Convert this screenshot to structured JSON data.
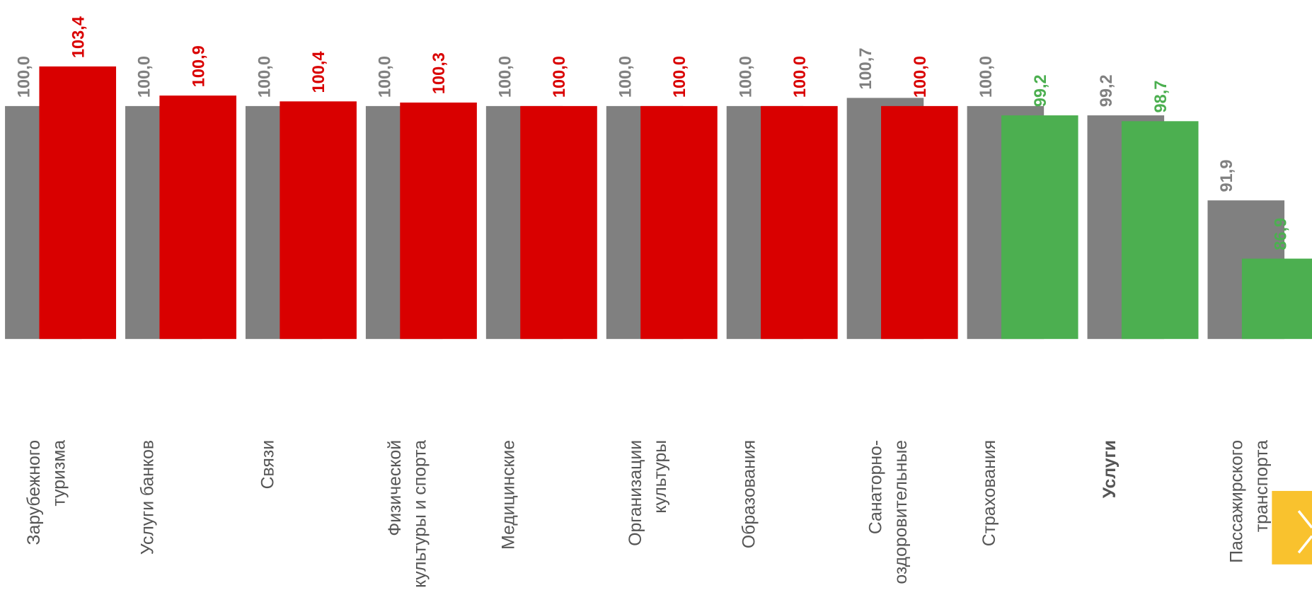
{
  "chart_data": {
    "type": "bar",
    "categories": [
      [
        "Зарубежного",
        "туризма"
      ],
      [
        "Услуги банков"
      ],
      [
        "Связи"
      ],
      [
        "Физической",
        "культуры и спорта"
      ],
      [
        "Медицинские"
      ],
      [
        "Организации",
        "культуры"
      ],
      [
        "Образования"
      ],
      [
        "Санаторно-",
        "оздоровительные"
      ],
      [
        "Страхования"
      ],
      [
        "Услуги"
      ],
      [
        "Пассажирского",
        "транспорта"
      ]
    ],
    "bold_category_index": 9,
    "ylim": [
      80,
      110
    ],
    "series": [
      {
        "color": "#808080",
        "values": [
          100.0,
          100.0,
          100.0,
          100.0,
          100.0,
          100.0,
          100.0,
          100.7,
          100.0,
          99.2,
          91.9
        ],
        "value_labels": [
          "100,0",
          "100,0",
          "100,0",
          "100,0",
          "100,0",
          "100,0",
          "100,0",
          "100,7",
          "100,0",
          "99,2",
          "91,9"
        ]
      },
      {
        "colors": [
          "#d90000",
          "#d90000",
          "#d90000",
          "#d90000",
          "#d90000",
          "#d90000",
          "#d90000",
          "#d90000",
          "#4caf50",
          "#4caf50",
          "#4caf50"
        ],
        "values": [
          103.4,
          100.9,
          100.4,
          100.3,
          100.0,
          100.0,
          100.0,
          100.0,
          99.2,
          98.7,
          86.9
        ],
        "value_labels": [
          "103,4",
          "100,9",
          "100,4",
          "100,3",
          "100,0",
          "100,0",
          "100,0",
          "100,0",
          "99,2",
          "98,7",
          "86,9"
        ]
      }
    ]
  }
}
